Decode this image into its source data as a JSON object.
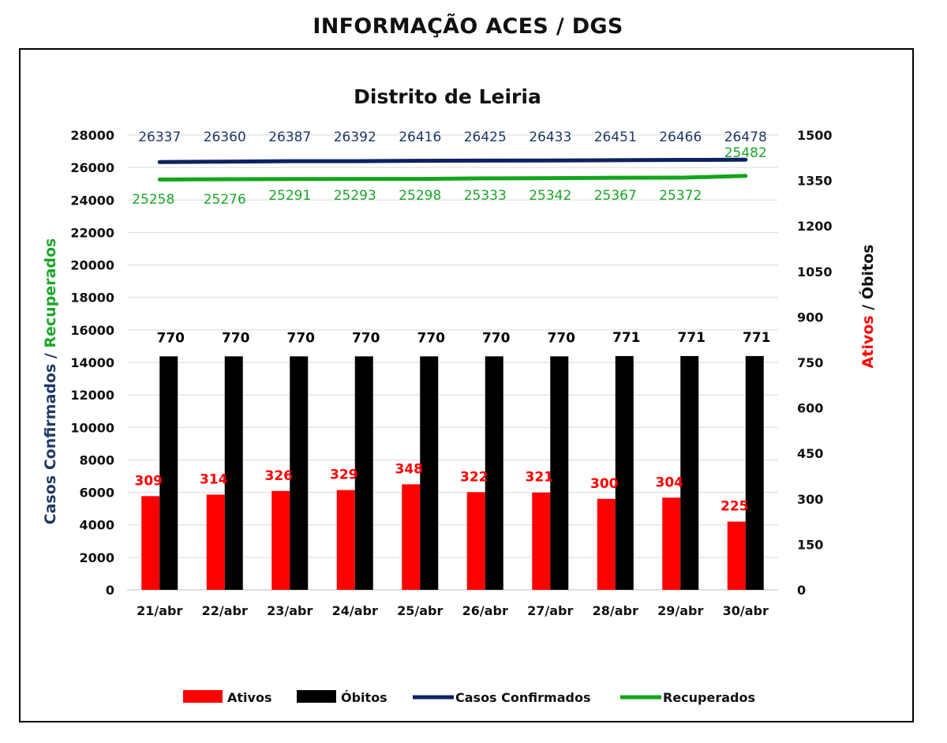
{
  "header": "INFORMAÇÃO ACES / DGS",
  "chart_data": {
    "type": "bar",
    "title": "Distrito de Leiria",
    "categories": [
      "21/abr",
      "22/abr",
      "23/abr",
      "24/abr",
      "25/abr",
      "26/abr",
      "27/abr",
      "28/abr",
      "29/abr",
      "30/abr"
    ],
    "left_axis": {
      "label_part1": "Casos Confirmados / ",
      "label_part2": "Recuperados",
      "ylim": [
        0,
        28000
      ],
      "ticks": [
        "0",
        "2000",
        "4000",
        "6000",
        "8000",
        "10000",
        "12000",
        "14000",
        "16000",
        "18000",
        "20000",
        "22000",
        "24000",
        "26000",
        "28000"
      ]
    },
    "right_axis": {
      "label_part1": "Ativos",
      "label_part2": " / Óbitos",
      "ylim": [
        0,
        1500
      ],
      "ticks": [
        "0",
        "150",
        "300",
        "450",
        "600",
        "750",
        "900",
        "1050",
        "1200",
        "1350",
        "1500"
      ]
    },
    "series": [
      {
        "name": "Ativos",
        "kind": "bar",
        "axis": "right",
        "color": "#ff0000",
        "label_color": "#ff0000",
        "values": [
          309,
          314,
          326,
          329,
          348,
          322,
          321,
          300,
          304,
          225
        ]
      },
      {
        "name": "Óbitos",
        "kind": "bar",
        "axis": "right",
        "color": "#000000",
        "label_color": "#000000",
        "values": [
          770,
          770,
          770,
          770,
          770,
          770,
          770,
          771,
          771,
          771
        ]
      },
      {
        "name": "Casos Confirmados",
        "kind": "line",
        "axis": "left",
        "color": "#0d2260",
        "label_color": "#1f3864",
        "values": [
          26337,
          26360,
          26387,
          26392,
          26416,
          26425,
          26433,
          26451,
          26466,
          26478
        ]
      },
      {
        "name": "Recuperados",
        "kind": "line",
        "axis": "left",
        "color": "#12a51a",
        "label_color": "#1aa628",
        "values": [
          25258,
          25276,
          25291,
          25293,
          25298,
          25333,
          25342,
          25367,
          25372,
          25482
        ]
      }
    ],
    "legend": "bottom",
    "grid": true
  }
}
